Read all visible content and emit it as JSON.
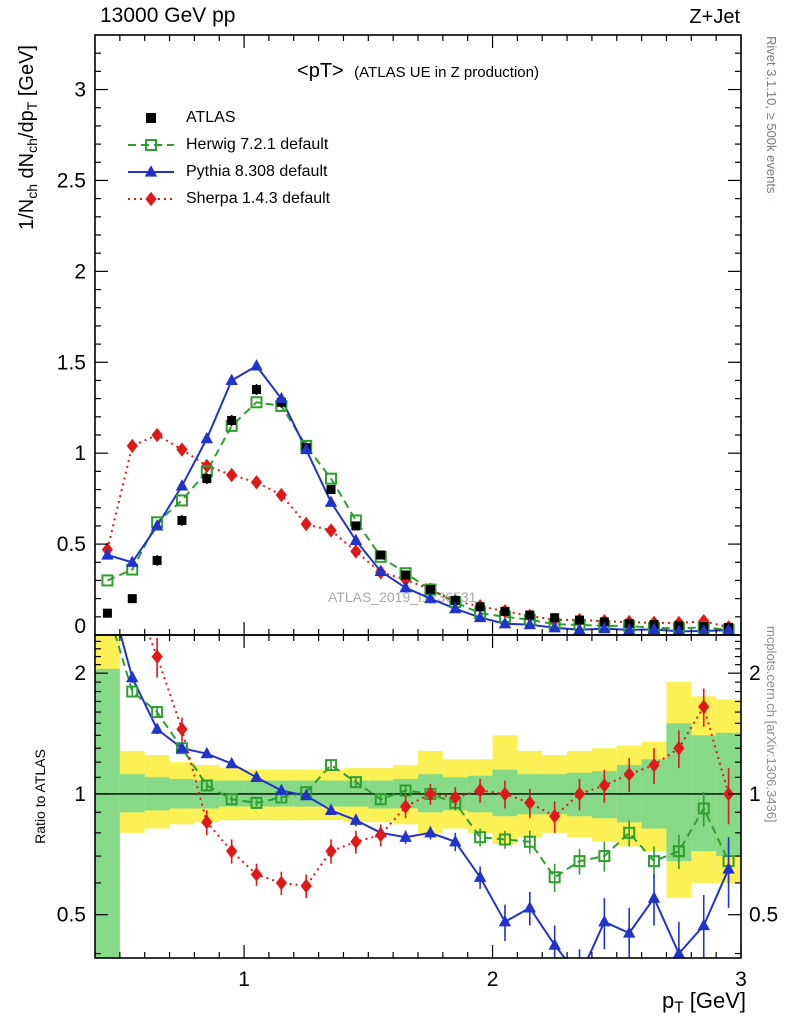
{
  "header": {
    "left": "13000 GeV pp",
    "right": "Z+Jet"
  },
  "panel_title": {
    "main": "<pT>",
    "sub": "(ATLAS UE in Z production)"
  },
  "watermark": "ATLAS_2019_I1736531",
  "side_notes": {
    "top": "Rivet 3.1.10, ≥ 500k events",
    "bottom": "mcplots.cern.ch [arXiv:1306.3436]",
    "top_color": "#708070",
    "bottom_color": "#8a8a8a"
  },
  "axes": {
    "y_label_top_parts": {
      "p1": "1/N",
      "s1": "ch",
      "p2": " dN",
      "s2": "ch",
      "p3": "/dp",
      "s3": "T",
      "p4": " [GeV]"
    },
    "y_label_bottom": "Ratio to ATLAS",
    "x_label_parts": {
      "base": "p",
      "sub": "T",
      "unit": " [GeV]"
    }
  },
  "chart_data": {
    "type": "line",
    "title": "<pT> (ATLAS UE in Z production)",
    "xlabel": "p_T [GeV]",
    "ylabel": "1/N_ch dN_ch/dp_T [GeV]",
    "ratio_ylabel": "Ratio to ATLAS",
    "legend_position": "top-left",
    "xlim": [
      0.4,
      3.0
    ],
    "ylim": [
      0,
      3.3
    ],
    "ratio_ylim": [
      0.39,
      2.49
    ],
    "ratio_yscale": "log",
    "x_binwidth": 0.1,
    "xticks": [
      1,
      2,
      3
    ],
    "yticks": [
      0,
      0.5,
      1,
      1.5,
      2,
      2.5,
      3
    ],
    "ratio_yticks": [
      0.5,
      1,
      2
    ],
    "x": [
      0.45,
      0.55,
      0.65,
      0.75,
      0.85,
      0.95,
      1.05,
      1.15,
      1.25,
      1.35,
      1.45,
      1.55,
      1.65,
      1.75,
      1.85,
      1.95,
      2.05,
      2.15,
      2.25,
      2.35,
      2.45,
      2.55,
      2.65,
      2.75,
      2.85,
      2.95
    ],
    "series": [
      {
        "name": "ATLAS",
        "color": "#000000",
        "marker": "square-filled",
        "line": "none",
        "values": [
          0.12,
          0.2,
          0.41,
          0.63,
          0.86,
          1.18,
          1.35,
          1.28,
          1.03,
          0.8,
          0.6,
          0.44,
          0.33,
          0.25,
          0.19,
          0.155,
          0.13,
          0.11,
          0.095,
          0.082,
          0.072,
          0.063,
          0.057,
          0.051,
          0.046,
          0.042
        ],
        "errors": [
          0.02,
          0.02,
          0.03,
          0.03,
          0.03,
          0.03,
          0.03,
          0.03,
          0.03,
          0.02,
          0.02,
          0.02,
          0.015,
          0.012,
          0.01,
          0.01,
          0.008,
          0.008,
          0.007,
          0.006,
          0.006,
          0.005,
          0.005,
          0.005,
          0.004,
          0.004
        ]
      },
      {
        "name": "Herwig 7.2.1 default",
        "color": "#2f9e2f",
        "marker": "square-open",
        "line": "dashed",
        "values": [
          0.3,
          0.36,
          0.62,
          0.74,
          0.9,
          1.15,
          1.28,
          1.26,
          1.04,
          0.86,
          0.63,
          0.43,
          0.34,
          0.25,
          0.18,
          0.12,
          0.1,
          0.084,
          0.059,
          0.056,
          0.05,
          0.05,
          0.039,
          0.037,
          0.042,
          0.029
        ]
      },
      {
        "name": "Pythia 8.308 default",
        "color": "#2233cc",
        "marker": "triangle-filled",
        "line": "solid",
        "values": [
          0.44,
          0.4,
          0.6,
          0.82,
          1.08,
          1.4,
          1.48,
          1.3,
          1.02,
          0.73,
          0.52,
          0.35,
          0.26,
          0.2,
          0.145,
          0.096,
          0.062,
          0.057,
          0.04,
          0.029,
          0.035,
          0.028,
          0.031,
          0.02,
          0.022,
          0.027
        ]
      },
      {
        "name": "Sherpa 1.4.3 default",
        "color": "#e01818",
        "marker": "diamond-filled",
        "line": "dotted",
        "values": [
          0.47,
          1.04,
          1.1,
          1.02,
          0.93,
          0.88,
          0.84,
          0.77,
          0.61,
          0.575,
          0.46,
          0.345,
          0.305,
          0.25,
          0.186,
          0.158,
          0.131,
          0.105,
          0.084,
          0.082,
          0.076,
          0.071,
          0.067,
          0.066,
          0.076,
          0.042
        ]
      }
    ],
    "ratio": {
      "reference": 1,
      "series": [
        {
          "name": "Herwig 7.2.1 default",
          "color": "#2f9e2f",
          "marker": "square-open",
          "line": "dashed",
          "values": [
            2.9,
            1.8,
            1.6,
            1.3,
            1.05,
            0.97,
            0.95,
            0.98,
            1.01,
            1.18,
            1.07,
            0.97,
            1.02,
            1.0,
            0.95,
            0.78,
            0.77,
            0.76,
            0.62,
            0.68,
            0.7,
            0.8,
            0.68,
            0.72,
            0.92,
            0.68
          ],
          "errors": [
            0.3,
            0.06,
            0.05,
            0.04,
            0.03,
            0.02,
            0.02,
            0.02,
            0.02,
            0.03,
            0.03,
            0.03,
            0.03,
            0.03,
            0.04,
            0.04,
            0.04,
            0.05,
            0.05,
            0.05,
            0.06,
            0.06,
            0.06,
            0.07,
            0.09,
            0.08
          ]
        },
        {
          "name": "Pythia 8.308 default",
          "color": "#2233cc",
          "marker": "triangle-filled",
          "line": "solid",
          "values": [
            3.3,
            1.95,
            1.45,
            1.3,
            1.26,
            1.19,
            1.1,
            1.02,
            0.99,
            0.91,
            0.86,
            0.8,
            0.78,
            0.8,
            0.76,
            0.62,
            0.48,
            0.52,
            0.42,
            0.35,
            0.48,
            0.45,
            0.55,
            0.4,
            0.47,
            0.65
          ],
          "errors": [
            0.3,
            0.06,
            0.04,
            0.03,
            0.03,
            0.02,
            0.02,
            0.02,
            0.02,
            0.02,
            0.03,
            0.03,
            0.03,
            0.03,
            0.04,
            0.04,
            0.05,
            0.05,
            0.05,
            0.06,
            0.07,
            0.07,
            0.08,
            0.08,
            0.09,
            0.13
          ]
        },
        {
          "name": "Sherpa 1.4.3 default",
          "color": "#e01818",
          "marker": "diamond-filled",
          "line": "dotted",
          "values": [
            4.5,
            3.2,
            2.2,
            1.45,
            0.85,
            0.72,
            0.63,
            0.6,
            0.59,
            0.72,
            0.76,
            0.79,
            0.93,
            1.0,
            0.98,
            1.02,
            1.0,
            0.95,
            0.88,
            1.0,
            1.05,
            1.12,
            1.18,
            1.3,
            1.65,
            1.0
          ],
          "errors": [
            0.5,
            0.4,
            0.25,
            0.1,
            0.06,
            0.05,
            0.04,
            0.04,
            0.04,
            0.05,
            0.05,
            0.05,
            0.06,
            0.06,
            0.06,
            0.07,
            0.08,
            0.08,
            0.08,
            0.09,
            0.1,
            0.11,
            0.12,
            0.14,
            0.18,
            0.16
          ]
        }
      ],
      "bands": {
        "yellow": {
          "color": "#fbf155",
          "ranges": [
            [
              0.36,
              2.6
            ],
            [
              0.8,
              1.28
            ],
            [
              0.82,
              1.25
            ],
            [
              0.84,
              1.2
            ],
            [
              0.85,
              1.18
            ],
            [
              0.86,
              1.16
            ],
            [
              0.86,
              1.15
            ],
            [
              0.86,
              1.15
            ],
            [
              0.86,
              1.15
            ],
            [
              0.86,
              1.15
            ],
            [
              0.85,
              1.16
            ],
            [
              0.85,
              1.16
            ],
            [
              0.84,
              1.18
            ],
            [
              0.8,
              1.28
            ],
            [
              0.82,
              1.22
            ],
            [
              0.8,
              1.22
            ],
            [
              0.75,
              1.4
            ],
            [
              0.78,
              1.28
            ],
            [
              0.8,
              1.25
            ],
            [
              0.78,
              1.28
            ],
            [
              0.76,
              1.3
            ],
            [
              0.74,
              1.32
            ],
            [
              0.72,
              1.35
            ],
            [
              0.55,
              1.9
            ],
            [
              0.6,
              1.75
            ],
            [
              0.6,
              1.72
            ]
          ]
        },
        "green": {
          "color": "#86d986",
          "ranges": [
            [
              0.36,
              2.05
            ],
            [
              0.9,
              1.12
            ],
            [
              0.91,
              1.1
            ],
            [
              0.92,
              1.09
            ],
            [
              0.92,
              1.08
            ],
            [
              0.93,
              1.08
            ],
            [
              0.93,
              1.08
            ],
            [
              0.93,
              1.08
            ],
            [
              0.93,
              1.08
            ],
            [
              0.93,
              1.08
            ],
            [
              0.93,
              1.08
            ],
            [
              0.92,
              1.08
            ],
            [
              0.92,
              1.09
            ],
            [
              0.9,
              1.12
            ],
            [
              0.91,
              1.1
            ],
            [
              0.9,
              1.11
            ],
            [
              0.88,
              1.15
            ],
            [
              0.89,
              1.12
            ],
            [
              0.89,
              1.12
            ],
            [
              0.88,
              1.13
            ],
            [
              0.87,
              1.14
            ],
            [
              0.85,
              1.18
            ],
            [
              0.82,
              1.22
            ],
            [
              0.68,
              1.5
            ],
            [
              0.72,
              1.4
            ],
            [
              0.7,
              1.42
            ]
          ]
        }
      }
    }
  }
}
